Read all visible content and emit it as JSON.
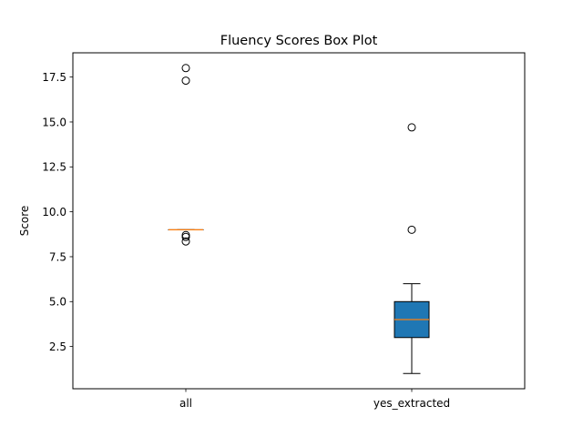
{
  "chart_data": {
    "type": "box",
    "title": "Fluency Scores Box Plot",
    "xlabel": "",
    "ylabel": "Score",
    "ylim": [
      0.15,
      18.85
    ],
    "y_ticks": [
      2.5,
      5.0,
      7.5,
      10.0,
      12.5,
      15.0,
      17.5
    ],
    "y_tick_labels": [
      "2.5",
      "5.0",
      "7.5",
      "10.0",
      "12.5",
      "15.0",
      "17.5"
    ],
    "categories": [
      "all",
      "yes_extracted"
    ],
    "boxes": [
      {
        "category": "all",
        "whisker_low": 9.0,
        "q1": 9.0,
        "median": 9.0,
        "q3": 9.0,
        "whisker_high": 9.0,
        "outliers": [
          18.0,
          17.3,
          8.7,
          8.6,
          8.35
        ]
      },
      {
        "category": "yes_extracted",
        "whisker_low": 1.0,
        "q1": 3.0,
        "median": 4.0,
        "q3": 5.0,
        "whisker_high": 6.0,
        "outliers": [
          14.7,
          9.0
        ]
      }
    ],
    "grid": false,
    "colors": {
      "box_fill": "#1f77b4",
      "median": "#ff7f0e",
      "outline": "#000000"
    }
  }
}
